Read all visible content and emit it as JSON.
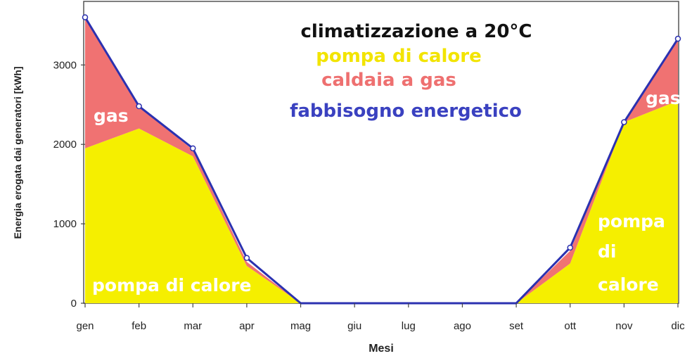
{
  "chart_data": {
    "type": "area",
    "xlabel": "Mesi",
    "ylabel": "Energia erogata dai generatori [kWh]",
    "categories": [
      "gen",
      "feb",
      "mar",
      "apr",
      "mag",
      "giu",
      "lug",
      "ago",
      "set",
      "ott",
      "nov",
      "dic"
    ],
    "ylim": [
      0,
      3800
    ],
    "yticks": [
      0,
      1000,
      2000,
      3000
    ],
    "grid": false,
    "series": [
      {
        "name": "pompa di calore",
        "color": "#f5ef00",
        "values": [
          1950,
          2200,
          1850,
          470,
          0,
          0,
          0,
          0,
          0,
          500,
          2280,
          2550
        ]
      },
      {
        "name": "caldaia a gas",
        "color": "#f07272",
        "values": [
          1650,
          280,
          80,
          50,
          0,
          0,
          0,
          0,
          0,
          160,
          0,
          780
        ]
      },
      {
        "name": "fabbisogno energetico",
        "color": "#2b31b0",
        "values": [
          3600,
          2480,
          1950,
          570,
          0,
          0,
          0,
          0,
          0,
          700,
          2280,
          3330
        ]
      }
    ],
    "legend": {
      "position": "top-center",
      "title": "climatizzazione a 20°C",
      "title_color": "#111111",
      "entries": [
        {
          "label": "pompa di calore",
          "color": "#f2e400"
        },
        {
          "label": "caldaia a gas",
          "color": "#ee7070"
        },
        {
          "label": "fabbisogno energetico",
          "color": "#3a41c0"
        }
      ]
    },
    "annotations": {
      "gas_left": "gas",
      "gas_right": "gas",
      "hp_left": "pompa di calore",
      "hp_right_1": "pompa",
      "hp_right_2": "di",
      "hp_right_3": "calore"
    }
  }
}
